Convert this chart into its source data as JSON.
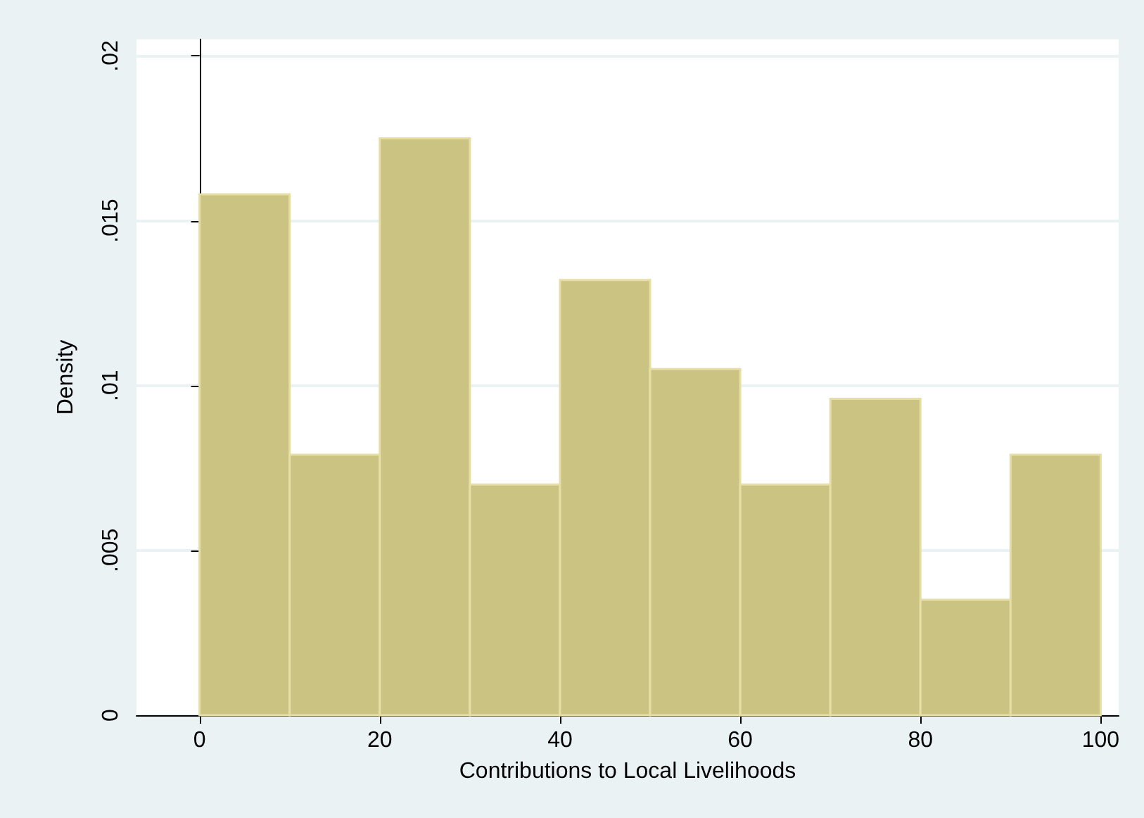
{
  "chart_data": {
    "type": "histogram",
    "xlabel": "Contributions to Local Livelihoods",
    "ylabel": "Density",
    "bins": [
      0,
      10,
      20,
      30,
      40,
      50,
      60,
      70,
      80,
      90,
      100
    ],
    "values": [
      0.0158,
      0.0079,
      0.0175,
      0.007,
      0.0132,
      0.0105,
      0.007,
      0.0096,
      0.0035,
      0.0079
    ],
    "color": "#cbc381",
    "xlim": [
      -7,
      102
    ],
    "xticks": [
      0,
      20,
      40,
      60,
      80,
      100
    ],
    "ylim": [
      0,
      0.0205
    ],
    "yticks": [
      0,
      {
        "value": 0.005,
        "label": ".005"
      },
      {
        "value": 0.01,
        "label": ".01"
      },
      {
        "value": 0.015,
        "label": ".015"
      },
      {
        "value": 0.02,
        "label": ".02"
      }
    ],
    "grid": "y"
  }
}
